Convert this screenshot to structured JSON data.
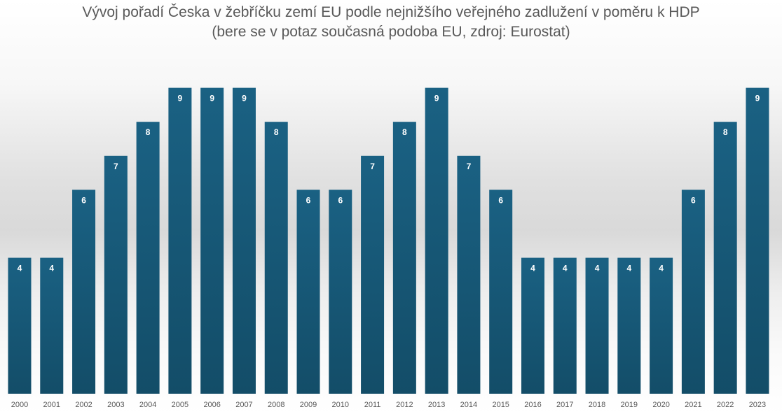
{
  "chart_data": {
    "type": "bar",
    "title": "Vývoj pořadí Česka v žebříčku zemí EU podle nejnižšího veřejného zadlužení v poměru k HDP",
    "subtitle": "(bere se v potaz současná podoba EU, zdroj: Eurostat)",
    "xlabel": "",
    "ylabel": "",
    "categories": [
      "2000",
      "2001",
      "2002",
      "2003",
      "2004",
      "2005",
      "2006",
      "2007",
      "2008",
      "2009",
      "2010",
      "2011",
      "2012",
      "2013",
      "2014",
      "2015",
      "2016",
      "2017",
      "2018",
      "2019",
      "2020",
      "2021",
      "2022",
      "2023"
    ],
    "values": [
      4,
      4,
      6,
      7,
      8,
      9,
      9,
      9,
      8,
      6,
      6,
      7,
      8,
      9,
      7,
      6,
      4,
      4,
      4,
      4,
      4,
      6,
      8,
      9
    ],
    "ylim": [
      0,
      9
    ],
    "grid": false,
    "legend": "none",
    "colors": {
      "bar_top": "#1a6183",
      "bar_bottom": "#134d68",
      "label": "#ffffff",
      "tick": "#595959"
    }
  }
}
